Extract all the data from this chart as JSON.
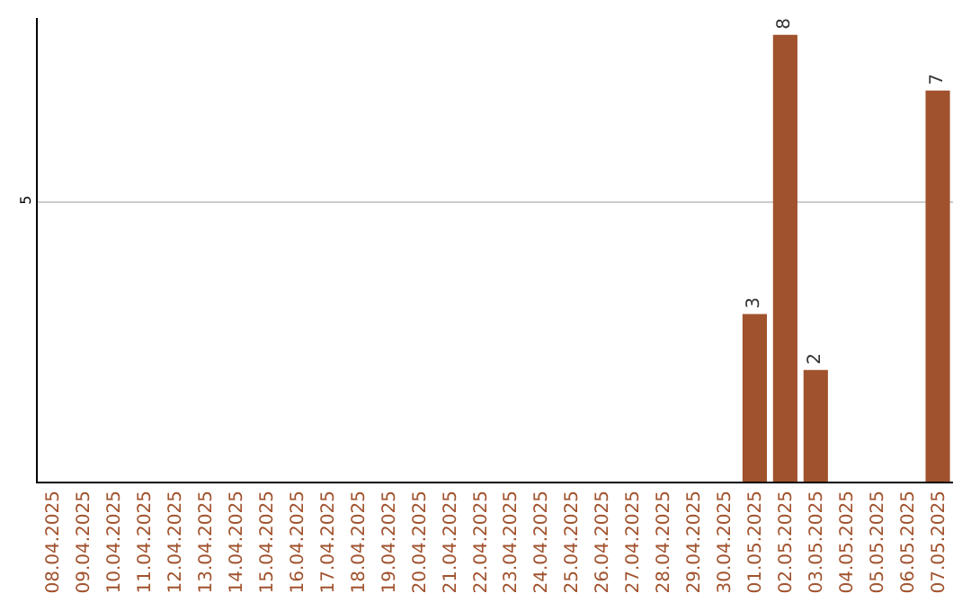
{
  "chart_data": {
    "type": "bar",
    "categories": [
      "08.04.2025",
      "09.04.2025",
      "10.04.2025",
      "11.04.2025",
      "12.04.2025",
      "13.04.2025",
      "14.04.2025",
      "15.04.2025",
      "16.04.2025",
      "17.04.2025",
      "18.04.2025",
      "19.04.2025",
      "20.04.2025",
      "21.04.2025",
      "22.04.2025",
      "23.04.2025",
      "24.04.2025",
      "25.04.2025",
      "26.04.2025",
      "27.04.2025",
      "28.04.2025",
      "29.04.2025",
      "30.04.2025",
      "01.05.2025",
      "02.05.2025",
      "03.05.2025",
      "04.05.2025",
      "05.05.2025",
      "06.05.2025",
      "07.05.2025"
    ],
    "values": [
      null,
      null,
      null,
      null,
      null,
      null,
      null,
      null,
      null,
      null,
      null,
      null,
      null,
      null,
      null,
      null,
      null,
      null,
      null,
      null,
      null,
      null,
      null,
      3,
      8,
      2,
      null,
      null,
      null,
      7
    ],
    "color": "#a0522d",
    "ylim": [
      0,
      8.3
    ],
    "yticks": [
      5
    ],
    "grid": "y",
    "data_labels": true
  }
}
